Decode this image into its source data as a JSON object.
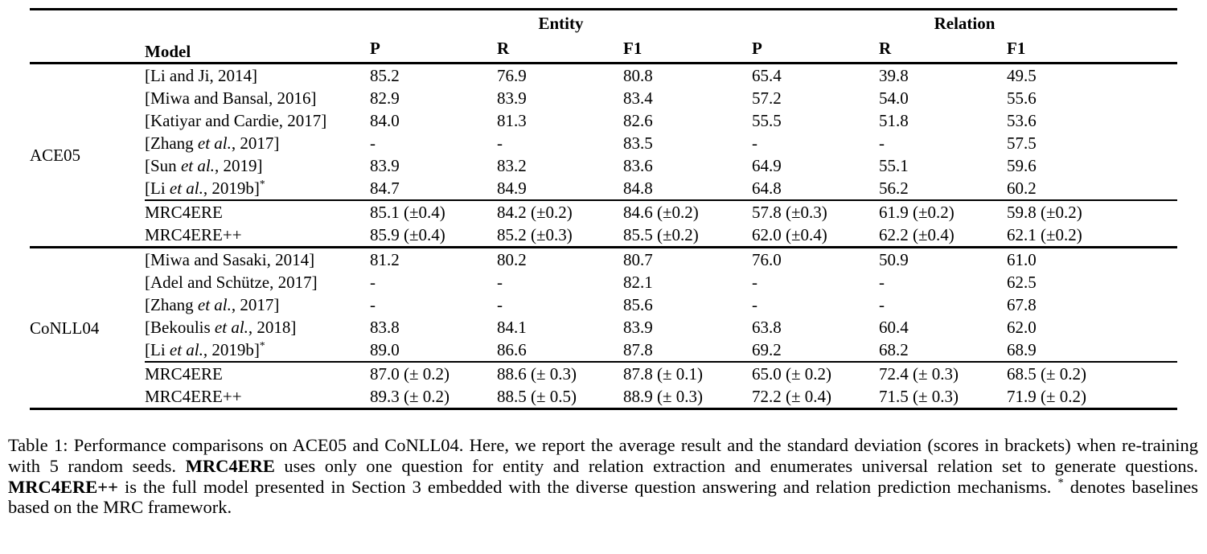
{
  "table": {
    "header": {
      "model_label": "Model",
      "entity_group": "Entity",
      "relation_group": "Relation",
      "subcolumns": [
        "P",
        "R",
        "F1",
        "P",
        "R",
        "F1"
      ]
    },
    "sections": [
      {
        "dataset": "ACE05",
        "baselines": [
          {
            "model": [
              {
                "t": "[Li and Ji, 2014]"
              }
            ],
            "values": [
              "85.2",
              "76.9",
              "80.8",
              "65.4",
              "39.8",
              "49.5"
            ],
            "bold": [
              3
            ]
          },
          {
            "model": [
              {
                "t": "[Miwa and Bansal, 2016]"
              }
            ],
            "values": [
              "82.9",
              "83.9",
              "83.4",
              "57.2",
              "54.0",
              "55.6"
            ],
            "bold": []
          },
          {
            "model": [
              {
                "t": "[Katiyar and Cardie, 2017]"
              }
            ],
            "values": [
              "84.0",
              "81.3",
              "82.6",
              "55.5",
              "51.8",
              "53.6"
            ],
            "bold": []
          },
          {
            "model": [
              {
                "t": "[Zhang "
              },
              {
                "t": "et al.",
                "i": true
              },
              {
                "t": ", 2017]"
              }
            ],
            "values": [
              "-",
              "-",
              "83.5",
              "-",
              "-",
              "57.5"
            ],
            "bold": []
          },
          {
            "model": [
              {
                "t": "[Sun "
              },
              {
                "t": "et al.",
                "i": true
              },
              {
                "t": ", 2019]"
              }
            ],
            "values": [
              "83.9",
              "83.2",
              "83.6",
              "64.9",
              "55.1",
              "59.6"
            ],
            "bold": []
          },
          {
            "model": [
              {
                "t": "[Li "
              },
              {
                "t": "et al.",
                "i": true
              },
              {
                "t": ", 2019b]"
              },
              {
                "t": "*",
                "sup": true
              }
            ],
            "values": [
              "84.7",
              "84.9",
              "84.8",
              "64.8",
              "56.2",
              "60.2"
            ],
            "bold": []
          }
        ],
        "ours": [
          {
            "model": [
              {
                "t": "MRC4ERE"
              }
            ],
            "values": [
              "85.1 (±0.4)",
              "84.2 (±0.2)",
              "84.6 (±0.2)",
              "57.8 (±0.3)",
              "61.9 (±0.2)",
              "59.8 (±0.2)"
            ],
            "bold": []
          },
          {
            "model": [
              {
                "t": "MRC4ERE++"
              }
            ],
            "values": [
              "85.9 (±0.4)",
              "85.2 (±0.3)",
              "85.5 (±0.2)",
              "62.0 (±0.4)",
              "62.2 (±0.4)",
              "62.1 (±0.2)"
            ],
            "bold": [
              2,
              5
            ]
          }
        ]
      },
      {
        "dataset": "CoNLL04",
        "baselines": [
          {
            "model": [
              {
                "t": "[Miwa and Sasaki, 2014]"
              }
            ],
            "values": [
              "81.2",
              "80.2",
              "80.7",
              "76.0",
              "50.9",
              "61.0"
            ],
            "bold": []
          },
          {
            "model": [
              {
                "t": "[Adel and Schütze, 2017]"
              }
            ],
            "values": [
              "-",
              "-",
              "82.1",
              "-",
              "-",
              "62.5"
            ],
            "bold": []
          },
          {
            "model": [
              {
                "t": "[Zhang "
              },
              {
                "t": "et al.",
                "i": true
              },
              {
                "t": ", 2017]"
              }
            ],
            "values": [
              "-",
              "-",
              "85.6",
              "-",
              "-",
              "67.8"
            ],
            "bold": []
          },
          {
            "model": [
              {
                "t": "[Bekoulis "
              },
              {
                "t": "et al.",
                "i": true
              },
              {
                "t": ", 2018]"
              }
            ],
            "values": [
              "83.8",
              "84.1",
              "83.9",
              "63.8",
              "60.4",
              "62.0"
            ],
            "bold": []
          },
          {
            "model": [
              {
                "t": "[Li "
              },
              {
                "t": "et al.",
                "i": true
              },
              {
                "t": ", 2019b]"
              },
              {
                "t": "*",
                "sup": true
              }
            ],
            "values": [
              "89.0",
              "86.6",
              "87.8",
              "69.2",
              "68.2",
              "68.9"
            ],
            "bold": []
          }
        ],
        "ours": [
          {
            "model": [
              {
                "t": "MRC4ERE"
              }
            ],
            "values": [
              "87.0 (± 0.2)",
              "88.6 (± 0.3)",
              "87.8 (± 0.1)",
              "65.0 (± 0.2)",
              "72.4 (± 0.3)",
              "68.5 (± 0.2)"
            ],
            "bold": []
          },
          {
            "model": [
              {
                "t": "MRC4ERE++"
              }
            ],
            "values": [
              "89.3 (± 0.2)",
              "88.5 (± 0.5)",
              "88.9 (± 0.3)",
              "72.2 (± 0.4)",
              "71.5 (± 0.3)",
              "71.9 (± 0.2)"
            ],
            "bold": [
              2,
              5
            ]
          }
        ]
      }
    ]
  },
  "caption": {
    "segments": [
      {
        "t": "Table 1: Performance comparisons on ACE05 and CoNLL04. Here, we report the average result and the standard deviation (scores in brackets) when re-training with 5 random seeds. "
      },
      {
        "t": "MRC4ERE",
        "b": true
      },
      {
        "t": " uses only one question for entity and relation extraction and enumerates universal relation set to generate questions. "
      },
      {
        "t": "MRC4ERE++",
        "b": true
      },
      {
        "t": " is the full model presented in Section 3 embedded with the diverse question answering and relation prediction mechanisms. "
      },
      {
        "t": "*",
        "sup": true
      },
      {
        "t": " denotes baselines based on the MRC framework."
      }
    ]
  }
}
